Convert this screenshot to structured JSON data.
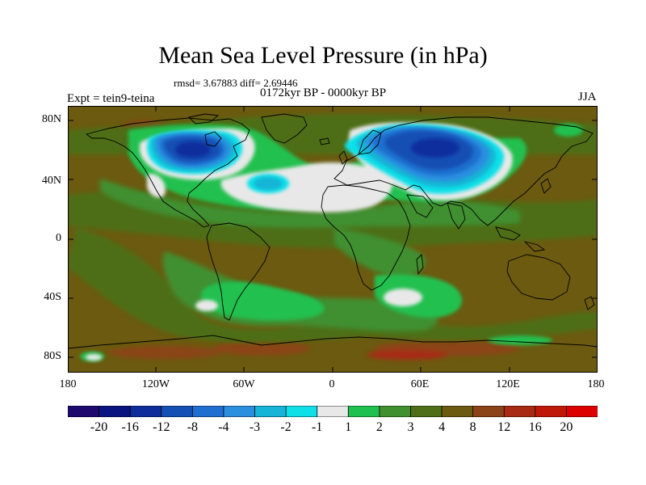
{
  "title": "Mean Sea Level Pressure (in hPa)",
  "stats": "rmsd= 3.67883 diff= 2.69446",
  "period": "0172kyr BP - 0000kyr BP",
  "experiment": "Expt = tein9-teina",
  "season": "JJA",
  "y_ticks": [
    "80N",
    "40N",
    "0",
    "40S",
    "80S"
  ],
  "x_ticks": [
    "180",
    "120W",
    "60W",
    "0",
    "60E",
    "120E",
    "180"
  ],
  "colorbar": {
    "labels": [
      "-20",
      "-16",
      "-12",
      "-8",
      "-4",
      "-3",
      "-2",
      "-1",
      "1",
      "2",
      "3",
      "4",
      "8",
      "12",
      "16",
      "20"
    ],
    "colors": [
      "#1c0a6e",
      "#0a1480",
      "#0f2e9c",
      "#1450b4",
      "#1e6fcf",
      "#2b8fe0",
      "#16b4d6",
      "#0fe0e8",
      "#e8e8e8",
      "#20c050",
      "#409030",
      "#4e6e18",
      "#6b5a10",
      "#8b4418",
      "#a82a14",
      "#c01808",
      "#dd0000"
    ]
  },
  "legend_colors": {
    "background": "#6b5a10",
    "c4": "#4e6e18",
    "c3": "#409030",
    "c2": "#20c050",
    "c1": "#e8e8e8",
    "m1": "#0fe0e8",
    "m2": "#16b4d6",
    "m3": "#2b8fe0",
    "m4": "#1e6fcf",
    "m8": "#1450b4",
    "m12": "#0f2e9c",
    "p8": "#8b4418",
    "p12": "#a82a14"
  }
}
